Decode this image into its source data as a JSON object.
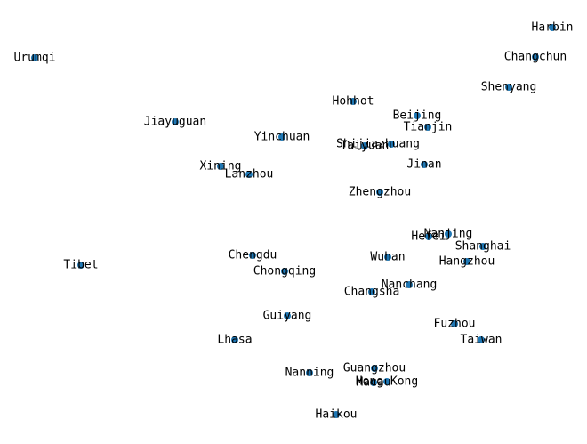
{
  "map": {
    "dot_color": "#1f77b4",
    "label_color": "#000000",
    "background": "#ffffff"
  },
  "cities": [
    {
      "id": "harbin",
      "name": "Harbin"
    },
    {
      "id": "urumqi",
      "name": "Urumqi"
    },
    {
      "id": "changchun",
      "name": "Changchun"
    },
    {
      "id": "shenyang",
      "name": "Shenyang"
    },
    {
      "id": "hohhot",
      "name": "Hohhot"
    },
    {
      "id": "beijing",
      "name": "Beijing"
    },
    {
      "id": "jiayuguan",
      "name": "Jiayuguan"
    },
    {
      "id": "tianjin",
      "name": "Tianjin"
    },
    {
      "id": "yinchuan",
      "name": "Yinchuan"
    },
    {
      "id": "shijiazhuang",
      "name": "Shijiazhuang"
    },
    {
      "id": "taiyuan",
      "name": "Taiyuan"
    },
    {
      "id": "xining",
      "name": "Xining"
    },
    {
      "id": "jinan",
      "name": "Jinan"
    },
    {
      "id": "lanzhou",
      "name": "Lanzhou"
    },
    {
      "id": "zhengzhou",
      "name": "Zhengzhou"
    },
    {
      "id": "nanjing",
      "name": "Nanjing"
    },
    {
      "id": "hefei",
      "name": "Hefei"
    },
    {
      "id": "shanghai",
      "name": "Shanghai"
    },
    {
      "id": "chengdu",
      "name": "Chengdu"
    },
    {
      "id": "wuhan",
      "name": "Wuhan"
    },
    {
      "id": "tibet",
      "name": "Tibet"
    },
    {
      "id": "hangzhou",
      "name": "Hangzhou"
    },
    {
      "id": "chongqing",
      "name": "Chongqing"
    },
    {
      "id": "nanchang",
      "name": "Nanchang"
    },
    {
      "id": "changsha",
      "name": "Changsha"
    },
    {
      "id": "guiyang",
      "name": "Guiyang"
    },
    {
      "id": "fuzhou",
      "name": "Fuzhou"
    },
    {
      "id": "lhasa",
      "name": "Lhasa"
    },
    {
      "id": "taiwan",
      "name": "Taiwan"
    },
    {
      "id": "guangzhou",
      "name": "Guangzhou"
    },
    {
      "id": "nanning",
      "name": "Nanning"
    },
    {
      "id": "macau",
      "name": "Macau"
    },
    {
      "id": "hong-kong",
      "name": "Hong Kong"
    },
    {
      "id": "haikou",
      "name": "Haikou"
    }
  ]
}
